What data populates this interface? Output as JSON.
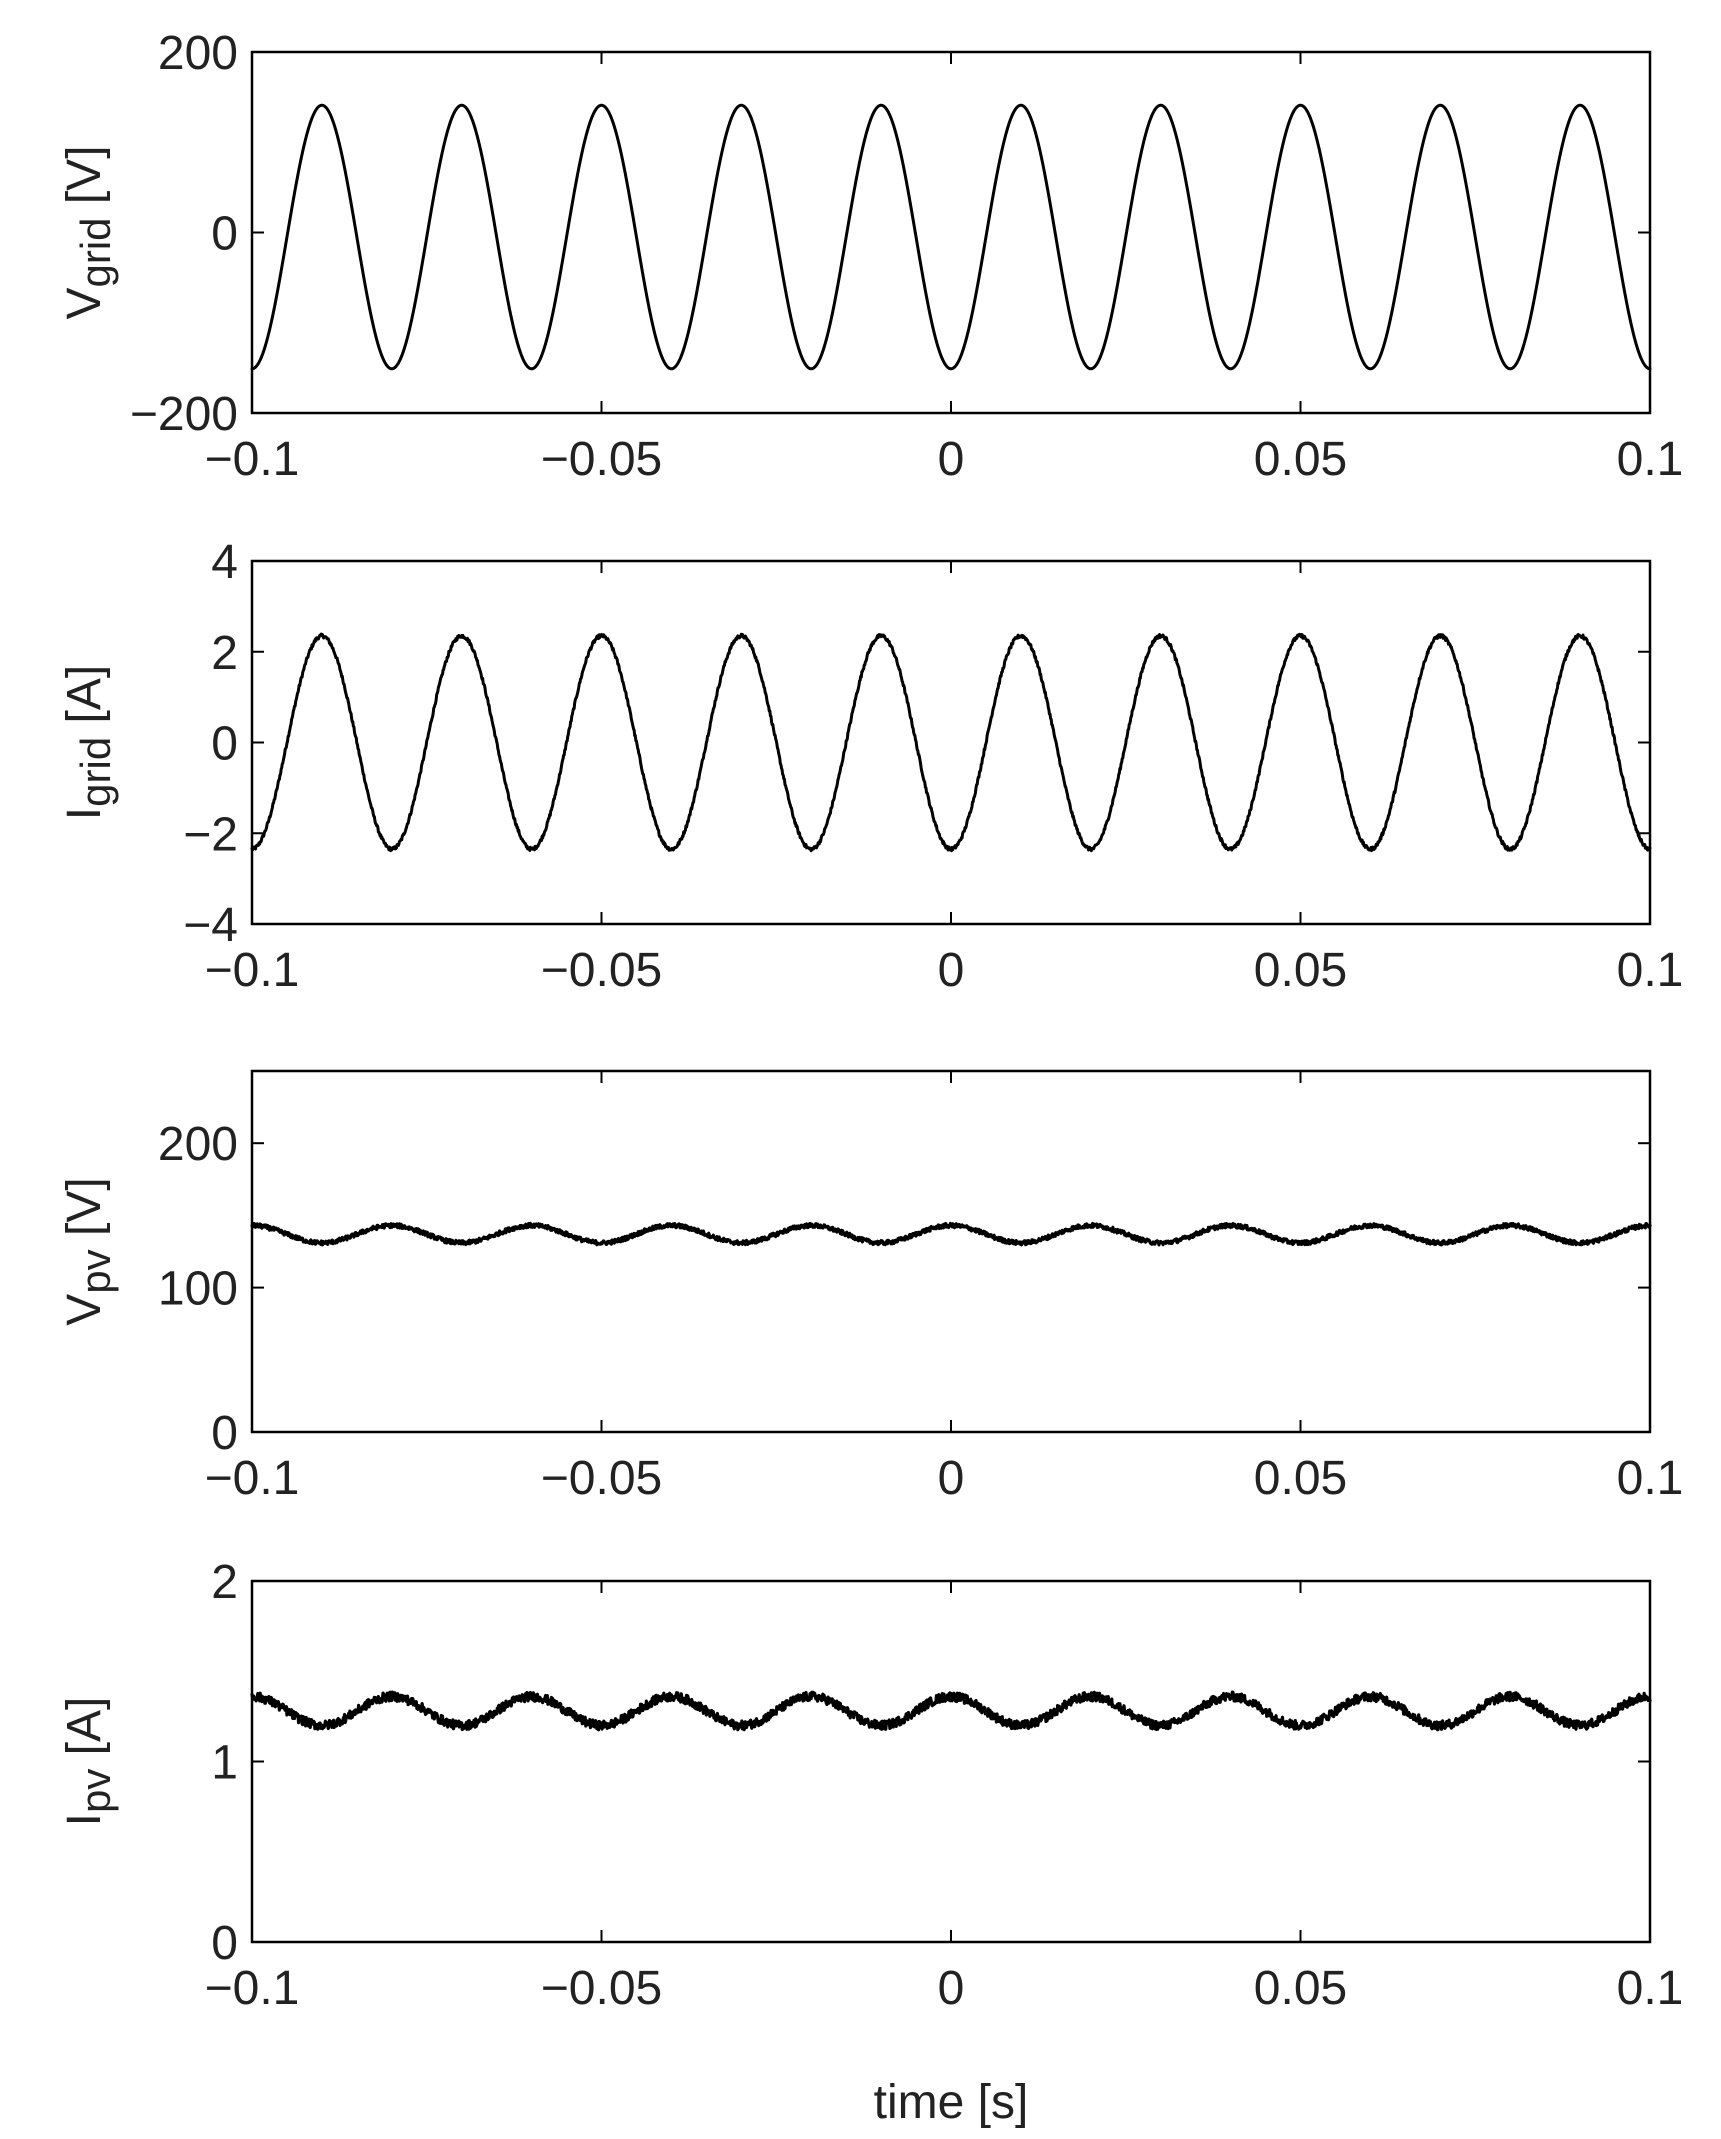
{
  "chart_data": [
    {
      "type": "line",
      "ylabel_main": "V",
      "ylabel_sub": "grid",
      "ylabel_unit": " [V]",
      "xlim": [
        -0.1,
        0.1
      ],
      "ylim": [
        -200,
        200
      ],
      "xticks": [
        -0.1,
        -0.05,
        0,
        0.05,
        0.1
      ],
      "xtick_labels": [
        "−0.1",
        "−0.05",
        "0",
        "0.05",
        "0.1"
      ],
      "yticks": [
        -200,
        0,
        200
      ],
      "ytick_labels": [
        "−200",
        "0",
        "200"
      ],
      "series": [
        {
          "waveform": "sine",
          "frequency_hz": 50,
          "amplitude": 146,
          "offset": -5,
          "phase_rad": -1.5708,
          "ripple": 0,
          "color": "#000000"
        }
      ]
    },
    {
      "type": "line",
      "ylabel_main": "I",
      "ylabel_sub": "grid",
      "ylabel_unit": " [A]",
      "xlim": [
        -0.1,
        0.1
      ],
      "ylim": [
        -4,
        4
      ],
      "xticks": [
        -0.1,
        -0.05,
        0,
        0.05,
        0.1
      ],
      "xtick_labels": [
        "−0.1",
        "−0.05",
        "0",
        "0.05",
        "0.1"
      ],
      "yticks": [
        -4,
        -2,
        0,
        2,
        4
      ],
      "ytick_labels": [
        "−4",
        "−2",
        "0",
        "2",
        "4"
      ],
      "series": [
        {
          "waveform": "sine",
          "frequency_hz": 50,
          "amplitude": 2.35,
          "offset": 0,
          "phase_rad": -1.5708,
          "ripple": 0.04,
          "color": "#000000"
        }
      ]
    },
    {
      "type": "line",
      "ylabel_main": "V",
      "ylabel_sub": "pv",
      "ylabel_unit": " [V]",
      "xlim": [
        -0.1,
        0.1
      ],
      "ylim": [
        0,
        250
      ],
      "xticks": [
        -0.1,
        -0.05,
        0,
        0.05,
        0.1
      ],
      "xtick_labels": [
        "−0.1",
        "−0.05",
        "0",
        "0.05",
        "0.1"
      ],
      "yticks": [
        0,
        100,
        200
      ],
      "ytick_labels": [
        "0",
        "100",
        "200"
      ],
      "series": [
        {
          "waveform": "sine",
          "frequency_hz": 50,
          "amplitude": 6,
          "offset": 137,
          "phase_rad": 1.5708,
          "ripple": 1.5,
          "color": "#000000"
        }
      ]
    },
    {
      "type": "line",
      "ylabel_main": "I",
      "ylabel_sub": "pv",
      "ylabel_unit": " [A]",
      "xlabel": "time [s]",
      "xlim": [
        -0.1,
        0.1
      ],
      "ylim": [
        0,
        2
      ],
      "xticks": [
        -0.1,
        -0.05,
        0,
        0.05,
        0.1
      ],
      "xtick_labels": [
        "−0.1",
        "−0.05",
        "0",
        "0.05",
        "0.1"
      ],
      "yticks": [
        0,
        1,
        2
      ],
      "ytick_labels": [
        "0",
        "1",
        "2"
      ],
      "series": [
        {
          "waveform": "sine",
          "frequency_hz": 50,
          "amplitude": 0.08,
          "offset": 1.28,
          "phase_rad": 1.5708,
          "ripple": 0.025,
          "color": "#000000"
        }
      ]
    }
  ]
}
